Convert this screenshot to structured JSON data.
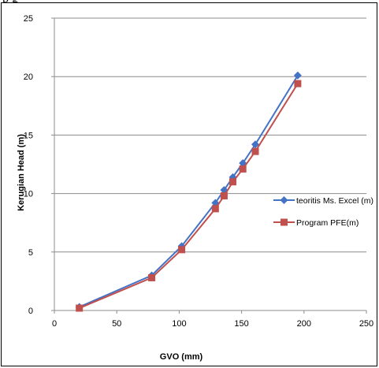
{
  "page": {
    "top_text_fragment": "p        g"
  },
  "chart_data": {
    "type": "line",
    "title": "",
    "xlabel": "GVO (mm)",
    "ylabel": "Kerugian Head (m)",
    "xlim": [
      0,
      250
    ],
    "ylim": [
      0,
      25
    ],
    "x_ticks": [
      0,
      50,
      100,
      150,
      200,
      250
    ],
    "y_ticks": [
      0,
      5,
      10,
      15,
      20,
      25
    ],
    "grid": "horizontal",
    "legend_position": "right",
    "series": [
      {
        "name": "teoritis Ms. Excel (m)",
        "color": "#4472C4",
        "marker": "diamond",
        "points": [
          [
            20,
            0.3
          ],
          [
            78,
            3.0
          ],
          [
            102,
            5.5
          ],
          [
            129,
            9.2
          ],
          [
            136,
            10.3
          ],
          [
            143,
            11.4
          ],
          [
            151,
            12.6
          ],
          [
            161,
            14.2
          ],
          [
            195,
            20.1
          ]
        ]
      },
      {
        "name": "Program PFE(m)",
        "color": "#C0504D",
        "marker": "square",
        "points": [
          [
            20,
            0.2
          ],
          [
            78,
            2.8
          ],
          [
            102,
            5.2
          ],
          [
            129,
            8.7
          ],
          [
            136,
            9.8
          ],
          [
            143,
            11.0
          ],
          [
            151,
            12.1
          ],
          [
            161,
            13.6
          ],
          [
            195,
            19.4
          ]
        ]
      }
    ]
  }
}
